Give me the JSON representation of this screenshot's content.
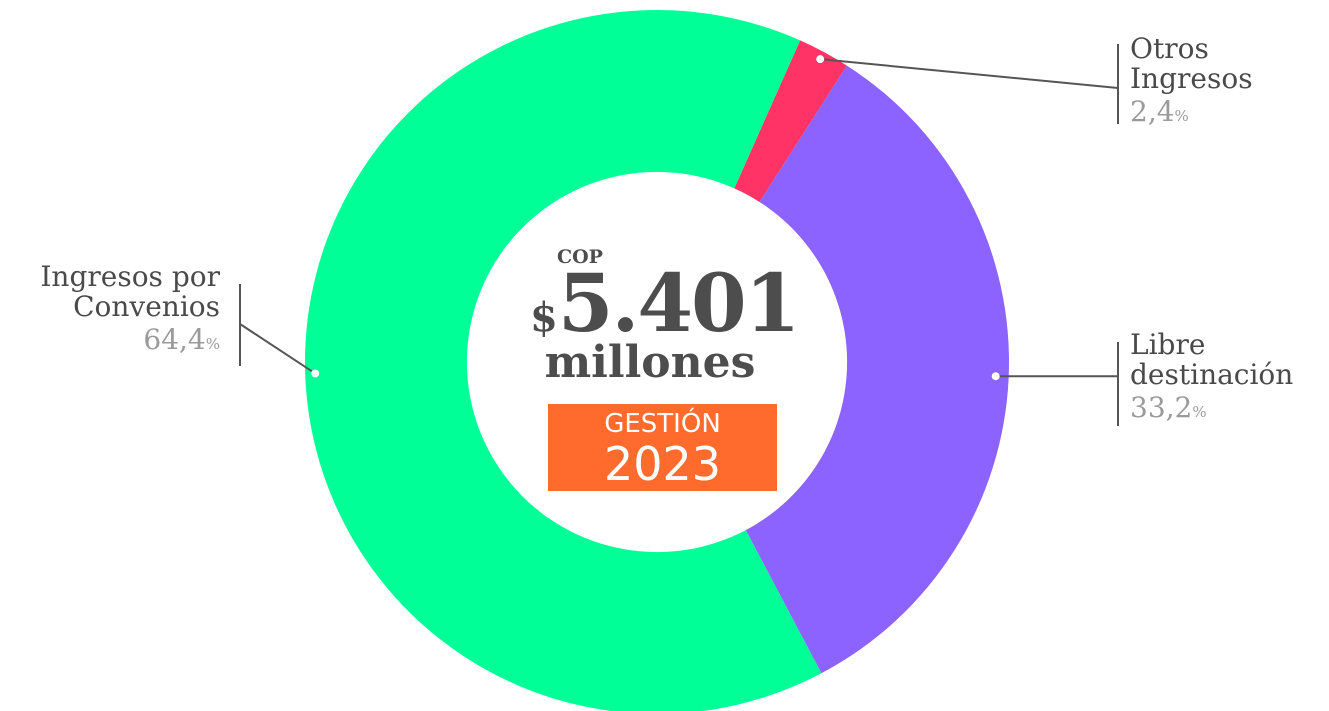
{
  "chart_data": {
    "type": "pie",
    "title": "",
    "categories": [
      "Otros Ingresos",
      "Libre destinación",
      "Ingresos por Convenios"
    ],
    "labels": {
      "otros": [
        "Otros",
        "Ingresos"
      ],
      "libre": [
        "Libre",
        "destinación"
      ],
      "convenios": [
        "Ingresos por",
        "Convenios"
      ]
    },
    "values": [
      2.4,
      33.2,
      64.4
    ],
    "value_labels": [
      "2,4",
      "33,2",
      "64,4"
    ],
    "percent_sign": "%",
    "colors": [
      "#ff3366",
      "#8c63ff",
      "#00ff96"
    ],
    "inner_radius_ratio": 0.54
  },
  "center": {
    "currency": "COP",
    "dollar": "$",
    "amount": "5.401",
    "unit": "millones"
  },
  "badge": {
    "line1": "GESTIÓN",
    "line2": "2023"
  },
  "colors": {
    "leader_line": "#555555",
    "badge_bg": "#fe6b2c",
    "text": "#4a4a4a",
    "pct_text": "#9a9a9a"
  }
}
